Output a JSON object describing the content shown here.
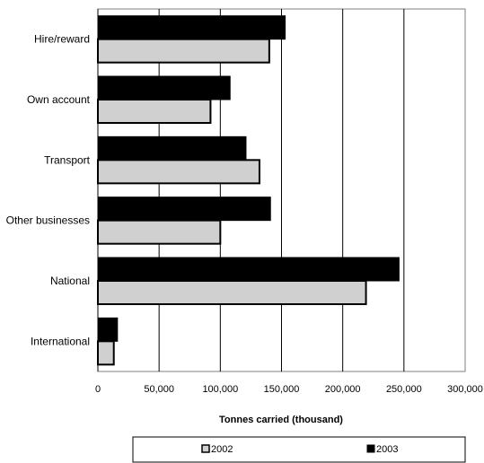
{
  "chart_data": {
    "type": "bar",
    "orientation": "horizontal",
    "categories": [
      "Hire/reward",
      "Own account",
      "Transport",
      "Other businesses",
      "National",
      "International"
    ],
    "series": [
      {
        "name": "2002",
        "values": [
          140000,
          92000,
          132000,
          100000,
          219000,
          13000
        ],
        "color": "#d0d0d0"
      },
      {
        "name": "2003",
        "values": [
          153000,
          108000,
          121000,
          141000,
          246000,
          16000
        ],
        "color": "#000000"
      }
    ],
    "xlabel": "Tonnes carried (thousand)",
    "ylabel": "",
    "xlim": [
      0,
      300000
    ],
    "xticks": [
      "0",
      "50,000",
      "100,000",
      "150,000",
      "200,000",
      "250,000",
      "300,000"
    ],
    "grid": true,
    "legend": "bottom"
  }
}
